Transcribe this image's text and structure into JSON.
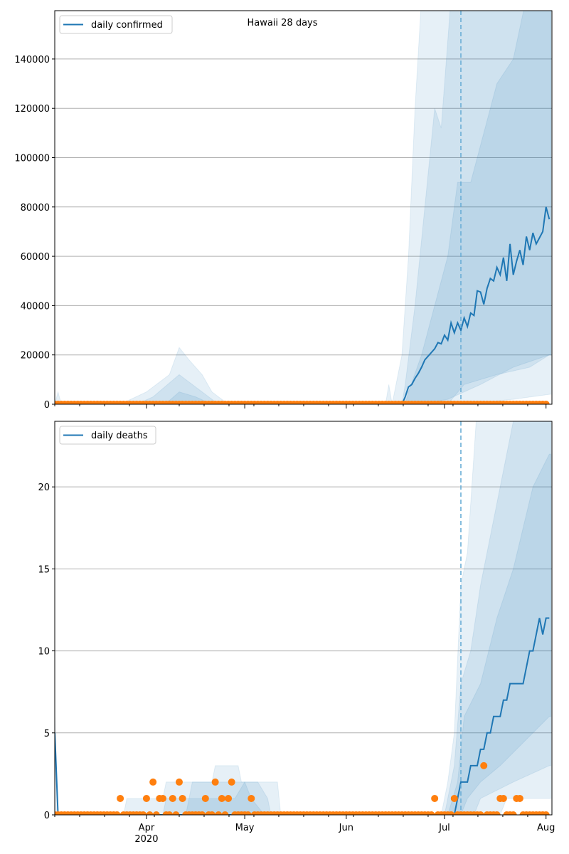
{
  "chart_data": [
    {
      "type": "line",
      "title": "Hawaii 28 days",
      "legend": "daily confirmed",
      "legend_position": "top-left",
      "ylim": [
        0,
        159600
      ],
      "yticks": [
        0,
        20000,
        40000,
        60000,
        80000,
        100000,
        120000,
        140000
      ],
      "start_date": "2020-03-04",
      "forecast_start_day": 124,
      "median": [
        [
          0,
          0
        ],
        [
          106,
          0
        ],
        [
          107,
          3000
        ],
        [
          108,
          7000
        ],
        [
          109,
          8000
        ],
        [
          110,
          10500
        ],
        [
          111,
          12500
        ],
        [
          112,
          15000
        ],
        [
          113,
          18000
        ],
        [
          114,
          19500
        ],
        [
          115,
          21000
        ],
        [
          116,
          22500
        ],
        [
          117,
          25000
        ],
        [
          118,
          24500
        ],
        [
          119,
          28000
        ],
        [
          120,
          26000
        ],
        [
          121,
          33000
        ],
        [
          122,
          29000
        ],
        [
          123,
          33000
        ],
        [
          124,
          30000
        ],
        [
          125,
          35000
        ],
        [
          126,
          31500
        ],
        [
          127,
          37000
        ],
        [
          128,
          36000
        ],
        [
          129,
          46000
        ],
        [
          130,
          45500
        ],
        [
          131,
          40500
        ],
        [
          132,
          47000
        ],
        [
          133,
          51000
        ],
        [
          134,
          50000
        ],
        [
          135,
          55500
        ],
        [
          136,
          52500
        ],
        [
          137,
          59500
        ],
        [
          138,
          50000
        ],
        [
          139,
          65000
        ],
        [
          140,
          52500
        ],
        [
          141,
          58000
        ],
        [
          142,
          62500
        ],
        [
          143,
          56500
        ],
        [
          144,
          68000
        ],
        [
          145,
          62500
        ],
        [
          146,
          69500
        ],
        [
          147,
          65000
        ],
        [
          148,
          67500
        ],
        [
          149,
          70000
        ],
        [
          150,
          80000
        ],
        [
          151,
          75000
        ]
      ],
      "bands": [
        {
          "upper": [
            [
              0,
              0
            ],
            [
              1,
              5000
            ],
            [
              2,
              0
            ],
            [
              20,
              0
            ],
            [
              28,
              5000
            ],
            [
              35,
              12000
            ],
            [
              38,
              23000
            ],
            [
              41,
              18000
            ],
            [
              45,
              12000
            ],
            [
              48,
              5000
            ],
            [
              53,
              0
            ],
            [
              101,
              0
            ],
            [
              102,
              8000
            ],
            [
              103,
              0
            ],
            [
              106,
              20000
            ],
            [
              108,
              60000
            ],
            [
              110,
              120000
            ],
            [
              112,
              165000
            ],
            [
              151,
              165000
            ]
          ],
          "lower": [
            [
              0,
              0
            ],
            [
              125,
              0
            ],
            [
              140,
              2000
            ],
            [
              151,
              4000
            ]
          ]
        },
        {
          "upper": [
            [
              0,
              0
            ],
            [
              25,
              0
            ],
            [
              30,
              3000
            ],
            [
              38,
              12000
            ],
            [
              42,
              8000
            ],
            [
              45,
              5000
            ],
            [
              50,
              0
            ],
            [
              106,
              0
            ],
            [
              107,
              8000
            ],
            [
              110,
              40000
            ],
            [
              113,
              80000
            ],
            [
              116,
              120000
            ],
            [
              118,
              112000
            ],
            [
              121,
              165000
            ],
            [
              151,
              165000
            ]
          ],
          "lower": [
            [
              0,
              0
            ],
            [
              120,
              0
            ],
            [
              125,
              8000
            ],
            [
              135,
              12000
            ],
            [
              145,
              15000
            ],
            [
              151,
              20000
            ]
          ]
        },
        {
          "upper": [
            [
              0,
              0
            ],
            [
              30,
              0
            ],
            [
              35,
              1500
            ],
            [
              38,
              5000
            ],
            [
              43,
              3000
            ],
            [
              48,
              0
            ],
            [
              107,
              0
            ],
            [
              108,
              5000
            ],
            [
              112,
              20000
            ],
            [
              116,
              40000
            ],
            [
              120,
              60000
            ],
            [
              123,
              90000
            ],
            [
              127,
              90000
            ],
            [
              135,
              130000
            ],
            [
              140,
              140000
            ],
            [
              144,
              165000
            ],
            [
              151,
              165000
            ]
          ],
          "lower": [
            [
              0,
              0
            ],
            [
              112,
              0
            ],
            [
              120,
              2000
            ],
            [
              130,
              8000
            ],
            [
              140,
              15000
            ],
            [
              151,
              20000
            ]
          ]
        }
      ],
      "actual": [
        0
      ]
    },
    {
      "type": "line",
      "legend": "daily deaths",
      "legend_position": "top-left",
      "ylim": [
        0,
        24
      ],
      "yticks": [
        0,
        5,
        10,
        15,
        20
      ],
      "xticks": [
        {
          "day": 28,
          "label": "Apr",
          "sub": "2020"
        },
        {
          "day": 58,
          "label": "May"
        },
        {
          "day": 89,
          "label": "Jun"
        },
        {
          "day": 119,
          "label": "Jul"
        },
        {
          "day": 150,
          "label": "Aug"
        }
      ],
      "forecast_start_day": 124,
      "median": [
        [
          0,
          5
        ],
        [
          1,
          0
        ],
        [
          122,
          0
        ],
        [
          123,
          1
        ],
        [
          124,
          2
        ],
        [
          126,
          2
        ],
        [
          127,
          3
        ],
        [
          129,
          3
        ],
        [
          130,
          4
        ],
        [
          131,
          4
        ],
        [
          132,
          5
        ],
        [
          133,
          5
        ],
        [
          134,
          6
        ],
        [
          136,
          6
        ],
        [
          137,
          7
        ],
        [
          138,
          7
        ],
        [
          139,
          8
        ],
        [
          143,
          8
        ],
        [
          144,
          9
        ],
        [
          145,
          10
        ],
        [
          146,
          10
        ],
        [
          147,
          11
        ],
        [
          148,
          12
        ],
        [
          149,
          11
        ],
        [
          150,
          12
        ],
        [
          151,
          12
        ]
      ],
      "bands": [
        {
          "upper": [
            [
              0,
              6
            ],
            [
              1,
              0
            ],
            [
              21,
              0
            ],
            [
              22,
              1
            ],
            [
              33,
              1
            ],
            [
              34,
              2
            ],
            [
              48,
              2
            ],
            [
              49,
              3
            ],
            [
              56,
              3
            ],
            [
              57,
              2
            ],
            [
              68,
              2
            ],
            [
              69,
              0
            ],
            [
              118,
              0
            ],
            [
              120,
              2
            ],
            [
              122,
              5
            ],
            [
              124,
              14
            ],
            [
              126,
              16
            ],
            [
              129,
              25
            ],
            [
              151,
              25
            ]
          ],
          "lower": [
            [
              0,
              0
            ],
            [
              136,
              0
            ],
            [
              138,
              1
            ],
            [
              151,
              1
            ]
          ]
        },
        {
          "upper": [
            [
              0,
              0
            ],
            [
              33,
              0
            ],
            [
              34,
              1
            ],
            [
              41,
              1
            ],
            [
              42,
              2
            ],
            [
              56,
              2
            ],
            [
              58,
              2
            ],
            [
              60,
              2
            ],
            [
              62,
              2
            ],
            [
              65,
              1
            ],
            [
              66,
              0
            ],
            [
              119,
              0
            ],
            [
              122,
              3
            ],
            [
              124,
              8
            ],
            [
              127,
              10
            ],
            [
              130,
              14
            ],
            [
              134,
              18
            ],
            [
              138,
              22
            ],
            [
              141,
              25
            ],
            [
              151,
              25
            ]
          ],
          "lower": [
            [
              0,
              0
            ],
            [
              128,
              0
            ],
            [
              130,
              1
            ],
            [
              140,
              2
            ],
            [
              151,
              3
            ]
          ]
        },
        {
          "upper": [
            [
              0,
              0
            ],
            [
              40,
              0
            ],
            [
              41,
              1
            ],
            [
              55,
              1
            ],
            [
              58,
              2
            ],
            [
              60,
              1
            ],
            [
              64,
              0
            ],
            [
              120,
              0
            ],
            [
              123,
              2
            ],
            [
              125,
              6
            ],
            [
              130,
              8
            ],
            [
              135,
              12
            ],
            [
              140,
              15
            ],
            [
              146,
              20
            ],
            [
              151,
              22
            ]
          ],
          "lower": [
            [
              0,
              0
            ],
            [
              124,
              0
            ],
            [
              126,
              1
            ],
            [
              130,
              2
            ],
            [
              136,
              3
            ],
            [
              141,
              4
            ],
            [
              151,
              6
            ]
          ]
        }
      ],
      "actual_nonzero": {
        "20": 1,
        "28": 1,
        "30": 2,
        "32": 1,
        "33": 1,
        "36": 1,
        "38": 2,
        "39": 1,
        "46": 1,
        "49": 2,
        "51": 1,
        "53": 1,
        "54": 2,
        "60": 1,
        "116": 1,
        "122": 1,
        "131": 3,
        "136": 1,
        "137": 1,
        "141": 1,
        "142": 1
      }
    }
  ],
  "colors": {
    "line": "#1f77b4",
    "actual": "#ff7f0e",
    "band": "#1f77b4",
    "grid": "#b0b0b0"
  }
}
